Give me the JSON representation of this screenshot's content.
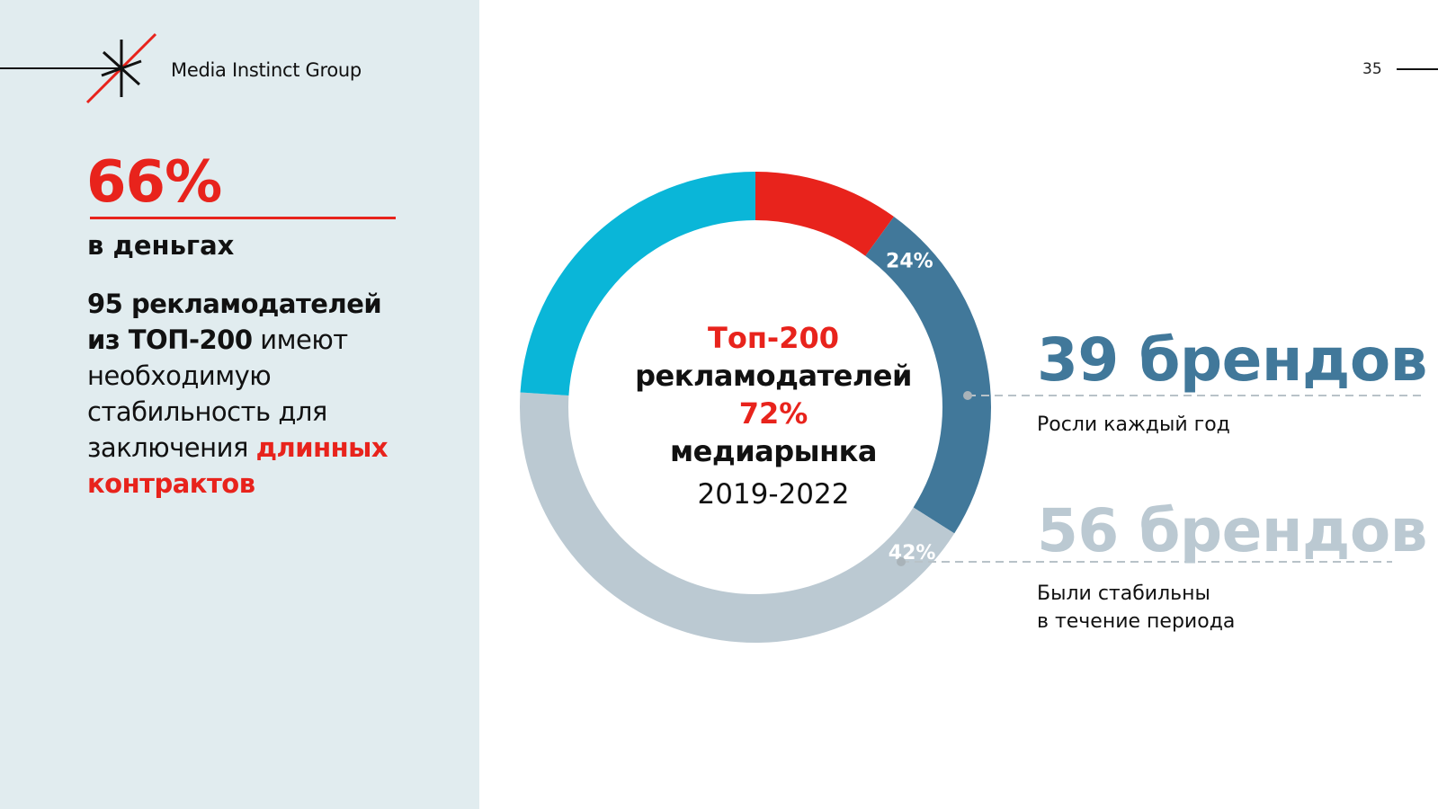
{
  "header": {
    "logo_text": "Media Instinct Group",
    "page_number": "35"
  },
  "left": {
    "big_percent": "66%",
    "caption": "в деньгах",
    "body_bold_1": "95 рекламодателей",
    "body_bold_2": "из ТОП-200",
    "body_normal_1": " имеют",
    "body_normal_2": "необходимую",
    "body_normal_3": "стабильность для",
    "body_normal_4": "заключения ",
    "body_red_1": "длинных",
    "body_red_2": "контрактов"
  },
  "center": {
    "line1": "Топ-200",
    "line2": "рекламодателей",
    "line3": "72%",
    "line4": "медиарынка",
    "line5": "2019-2022"
  },
  "right": {
    "brand1_value": "39 брендов",
    "brand1_caption": "Росли каждый год",
    "brand2_value": "56 брендов",
    "brand2_caption_1": "Были стабильны",
    "brand2_caption_2": "в течение периода"
  },
  "colors": {
    "red": "#e8231c",
    "dark_blue": "#41789a",
    "light_gray_blue": "#bbc9d2",
    "cyan": "#0ab6d8",
    "panel_bg": "#e1ecef"
  },
  "chart_data": {
    "type": "pie",
    "title": "Топ-200 рекламодателей",
    "slices": [
      {
        "value": 10,
        "color": "#e8231c",
        "label": ""
      },
      {
        "value": 24,
        "color": "#41789a",
        "label": "24%"
      },
      {
        "value": 42,
        "color": "#bbc9d2",
        "label": "42%"
      },
      {
        "value": 24,
        "color": "#0ab6d8",
        "label": ""
      }
    ],
    "donut": true
  }
}
